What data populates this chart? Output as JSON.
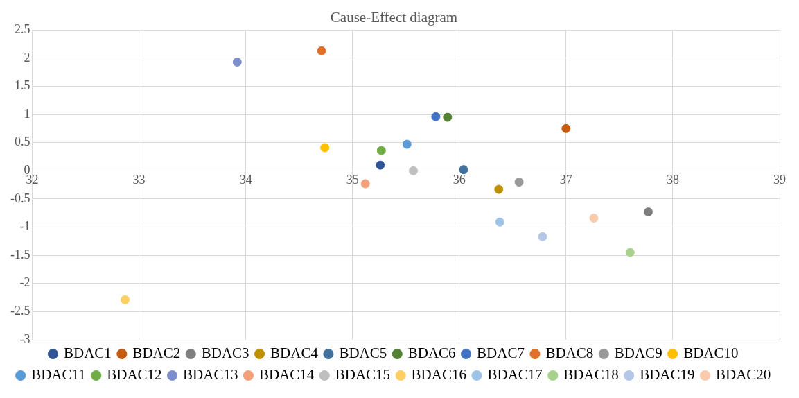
{
  "chart_data": {
    "type": "scatter",
    "title": "Cause-Effect diagram",
    "xlim": [
      32,
      39
    ],
    "xticks": [
      32,
      33,
      34,
      35,
      36,
      37,
      38,
      39
    ],
    "ylim": [
      -3,
      2.5
    ],
    "yticks": [
      -3,
      -2.5,
      -2,
      -1.5,
      -1,
      -0.5,
      0,
      0.5,
      1,
      1.5,
      2,
      2.5
    ],
    "grid": true,
    "legend": "bottom",
    "marker": "circle",
    "series": [
      {
        "name": "BDAC1",
        "color": "#2f5597",
        "x": [
          35.26
        ],
        "values": [
          0.1
        ]
      },
      {
        "name": "BDAC2",
        "color": "#c55a11",
        "x": [
          37.0
        ],
        "values": [
          0.75
        ]
      },
      {
        "name": "BDAC3",
        "color": "#7f7f7f",
        "x": [
          37.77
        ],
        "values": [
          -0.73
        ]
      },
      {
        "name": "BDAC4",
        "color": "#bf9000",
        "x": [
          36.37
        ],
        "values": [
          -0.33
        ]
      },
      {
        "name": "BDAC5",
        "color": "#41719c",
        "x": [
          36.04
        ],
        "values": [
          0.02
        ]
      },
      {
        "name": "BDAC6",
        "color": "#548235",
        "x": [
          35.89
        ],
        "values": [
          0.95
        ]
      },
      {
        "name": "BDAC7",
        "color": "#4472c4",
        "x": [
          35.78
        ],
        "values": [
          0.96
        ]
      },
      {
        "name": "BDAC8",
        "color": "#e0702a",
        "x": [
          34.71
        ],
        "values": [
          2.13
        ]
      },
      {
        "name": "BDAC9",
        "color": "#999999",
        "x": [
          36.56
        ],
        "values": [
          -0.2
        ]
      },
      {
        "name": "BDAC10",
        "color": "#ffc000",
        "x": [
          34.74
        ],
        "values": [
          0.41
        ]
      },
      {
        "name": "BDAC11",
        "color": "#5b9bd5",
        "x": [
          35.51
        ],
        "values": [
          0.47
        ]
      },
      {
        "name": "BDAC12",
        "color": "#70ad47",
        "x": [
          35.27
        ],
        "values": [
          0.36
        ]
      },
      {
        "name": "BDAC13",
        "color": "#7f8fcc",
        "x": [
          33.92
        ],
        "values": [
          1.93
        ]
      },
      {
        "name": "BDAC14",
        "color": "#f4a07a",
        "x": [
          35.12
        ],
        "values": [
          -0.23
        ]
      },
      {
        "name": "BDAC15",
        "color": "#bfbfbf",
        "x": [
          35.57
        ],
        "values": [
          0
        ]
      },
      {
        "name": "BDAC16",
        "color": "#ffcf66",
        "x": [
          32.87
        ],
        "values": [
          -2.29
        ]
      },
      {
        "name": "BDAC17",
        "color": "#9dc3e6",
        "x": [
          36.38
        ],
        "values": [
          -0.91
        ]
      },
      {
        "name": "BDAC18",
        "color": "#a9d18e",
        "x": [
          37.6
        ],
        "values": [
          -1.45
        ]
      },
      {
        "name": "BDAC19",
        "color": "#b4c7e7",
        "x": [
          36.78
        ],
        "values": [
          -1.17
        ]
      },
      {
        "name": "BDAC20",
        "color": "#f8cbad",
        "x": [
          37.26
        ],
        "values": [
          -0.84
        ]
      }
    ]
  }
}
